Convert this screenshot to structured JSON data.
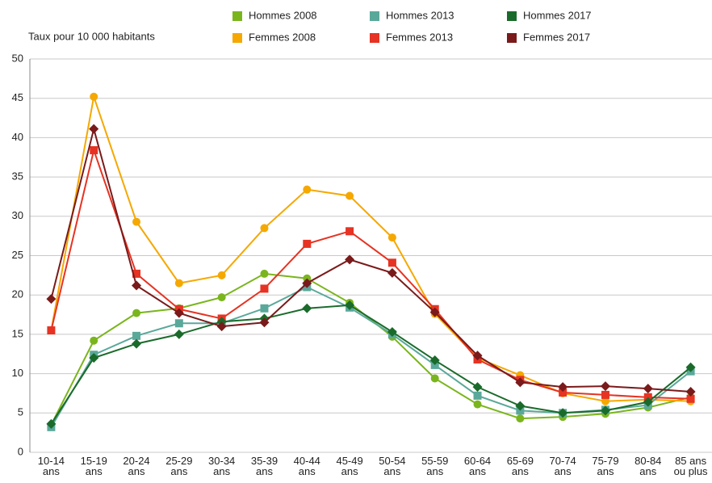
{
  "chart_data": {
    "type": "line",
    "y_label": "Taux pour 10 000 habitants",
    "categories": [
      "10-14\nans",
      "15-19\nans",
      "20-24\nans",
      "25-29\nans",
      "30-34\nans",
      "35-39\nans",
      "40-44\nans",
      "45-49\nans",
      "50-54\nans",
      "55-59\nans",
      "60-64\nans",
      "65-69\nans",
      "70-74\nans",
      "75-79\nans",
      "80-84\nans",
      "85 ans\nou plus"
    ],
    "series": [
      {
        "name": "Hommes 2008",
        "color": "#7ab51d",
        "marker": "circle",
        "values": [
          3.5,
          14.2,
          17.7,
          18.3,
          19.7,
          22.7,
          22.1,
          19.0,
          14.7,
          9.4,
          6.1,
          4.3,
          4.5,
          4.9,
          5.7,
          7.0
        ]
      },
      {
        "name": "Femmes 2008",
        "color": "#f5a800",
        "marker": "circle",
        "values": [
          15.5,
          45.2,
          29.3,
          21.5,
          22.5,
          28.5,
          33.4,
          32.6,
          27.3,
          17.6,
          12.0,
          9.8,
          7.5,
          6.5,
          6.7,
          6.5
        ]
      },
      {
        "name": "Hommes 2013",
        "color": "#5aa89a",
        "marker": "square",
        "values": [
          3.2,
          12.4,
          14.8,
          16.4,
          16.4,
          18.3,
          21.0,
          18.4,
          15.0,
          11.1,
          7.2,
          5.3,
          5.0,
          5.4,
          6.0,
          10.3
        ]
      },
      {
        "name": "Femmes 2013",
        "color": "#e63323",
        "marker": "square",
        "values": [
          15.5,
          38.4,
          22.7,
          18.2,
          17.0,
          20.8,
          26.5,
          28.1,
          24.1,
          18.2,
          11.8,
          9.2,
          7.6,
          7.3,
          7.0,
          6.8
        ]
      },
      {
        "name": "Hommes 2017",
        "color": "#1a6b2b",
        "marker": "diamond",
        "values": [
          3.6,
          12.0,
          13.8,
          15.0,
          16.6,
          17.0,
          18.3,
          18.7,
          15.3,
          11.7,
          8.3,
          5.9,
          5.0,
          5.3,
          6.4,
          10.8
        ]
      },
      {
        "name": "Femmes 2017",
        "color": "#7a1a1a",
        "marker": "diamond",
        "values": [
          19.5,
          41.1,
          21.2,
          17.7,
          16.0,
          16.5,
          21.5,
          24.5,
          22.8,
          17.8,
          12.3,
          8.9,
          8.3,
          8.4,
          8.1,
          7.7
        ]
      }
    ],
    "ylim": [
      0,
      50
    ],
    "yticks": [
      0,
      5,
      10,
      15,
      20,
      25,
      30,
      35,
      40,
      45,
      50
    ],
    "grid": true
  }
}
